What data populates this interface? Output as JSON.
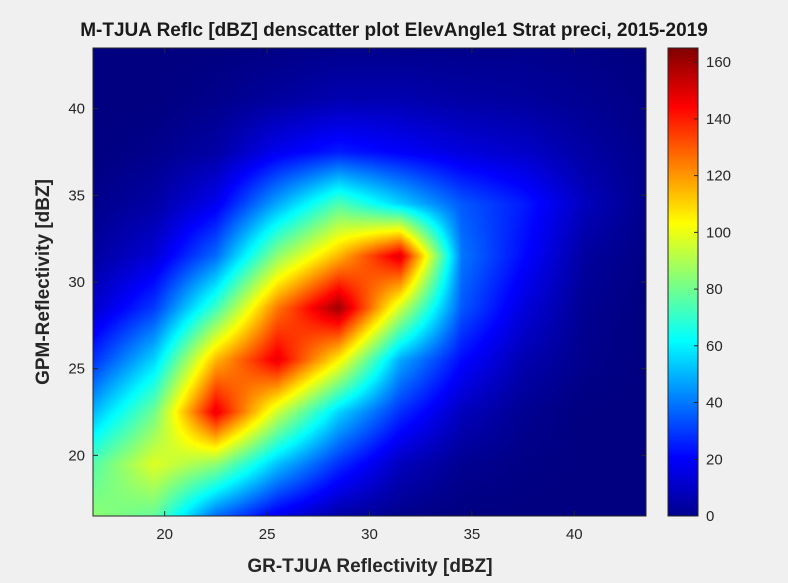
{
  "chart_data": {
    "type": "heatmap",
    "title": "M-TJUA Reflc [dBZ] denscatter plot ElevAngle1 Strat preci, 2015-2019",
    "xlabel": "GR-TJUA Reflectivity [dBZ]",
    "ylabel": "GPM-Reflectivity [dBZ]",
    "xlim": [
      16.5,
      43.5
    ],
    "ylim": [
      16.5,
      43.5
    ],
    "xticks": [
      "20",
      "25",
      "30",
      "35",
      "40"
    ],
    "yticks": [
      "20",
      "25",
      "30",
      "35",
      "40"
    ],
    "colorbar": {
      "ticks": [
        "0",
        "20",
        "40",
        "60",
        "80",
        "100",
        "120",
        "140",
        "160"
      ],
      "lim": [
        0,
        165
      ],
      "colormap": "jet"
    },
    "x": [
      16.5,
      19.5,
      22.5,
      25.5,
      28.5,
      31.5,
      34.5,
      37.5,
      40.5,
      43.5
    ],
    "y": [
      16.5,
      19.5,
      22.5,
      25.5,
      28.5,
      31.5,
      34.5,
      37.5,
      40.5,
      43.5
    ],
    "density": [
      [
        85,
        78,
        38,
        18,
        6,
        2,
        0,
        0,
        0,
        0
      ],
      [
        75,
        98,
        85,
        52,
        28,
        10,
        3,
        1,
        0,
        0
      ],
      [
        50,
        80,
        148,
        95,
        55,
        28,
        10,
        3,
        0,
        0
      ],
      [
        28,
        55,
        115,
        148,
        105,
        48,
        22,
        8,
        2,
        0
      ],
      [
        12,
        30,
        72,
        125,
        160,
        95,
        35,
        15,
        3,
        0
      ],
      [
        5,
        14,
        38,
        85,
        115,
        150,
        40,
        22,
        5,
        1
      ],
      [
        2,
        6,
        18,
        48,
        75,
        55,
        35,
        25,
        10,
        2
      ],
      [
        0,
        2,
        6,
        18,
        25,
        20,
        15,
        12,
        6,
        2
      ],
      [
        0,
        0,
        2,
        5,
        8,
        8,
        6,
        5,
        3,
        1
      ],
      [
        0,
        0,
        0,
        1,
        2,
        2,
        2,
        2,
        1,
        0
      ]
    ]
  }
}
